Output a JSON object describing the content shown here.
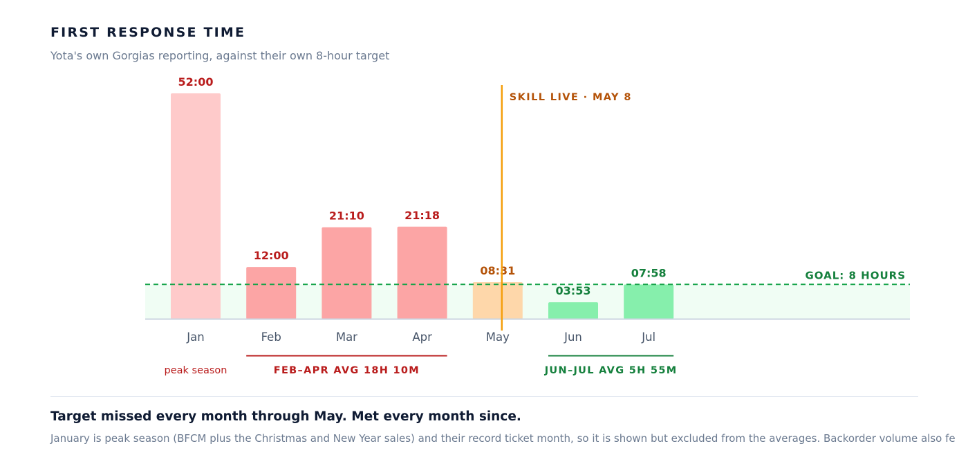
{
  "header": {
    "title": "FIRST RESPONSE TIME",
    "subtitle": "Yota's own Gorgias reporting, against their own 8-hour target"
  },
  "chart_data": {
    "type": "bar",
    "title": "FIRST RESPONSE TIME",
    "subtitle": "Yota's own Gorgias reporting, against their own 8-hour target",
    "categories": [
      "Jan",
      "Feb",
      "Mar",
      "Apr",
      "May",
      "Jun",
      "Jul"
    ],
    "values": [
      52.0,
      12.0,
      21.1667,
      21.3,
      8.5167,
      3.8833,
      7.9667
    ],
    "value_unit": "hours",
    "data_labels": [
      "52:00",
      "12:00",
      "21:10",
      "21:18",
      "08:31",
      "03:53",
      "07:58"
    ],
    "bar_colors": [
      "#fecaca",
      "#fca5a5",
      "#fca5a5",
      "#fca5a5",
      "#fed7aa",
      "#86efac",
      "#86efac"
    ],
    "label_colors": [
      "#b91c1c",
      "#b91c1c",
      "#b91c1c",
      "#b91c1c",
      "#b45309",
      "#15803d",
      "#15803d"
    ],
    "ylim": [
      0,
      52
    ],
    "grid": false,
    "goal_line": {
      "value": 8,
      "label": "GOAL: 8 HOURS",
      "color": "#16a34a"
    },
    "event_marker": {
      "category": "May",
      "label": "SKILL LIVE · MAY 8",
      "color": "#f59e0b"
    },
    "annotations": [
      {
        "text": "peak season",
        "categories": [
          "Jan"
        ],
        "color": "#b91c1c",
        "underline": false
      },
      {
        "text": "FEB–APR AVG 18H 10M",
        "categories": [
          "Feb",
          "Apr"
        ],
        "color": "#b91c1c",
        "underline": true
      },
      {
        "text": "JUN–JUL AVG 5H 55M",
        "categories": [
          "Jun",
          "Jul"
        ],
        "color": "#15803d",
        "underline": true
      }
    ]
  },
  "footer": {
    "heading": "Target missed every month through May. Met every month since.",
    "body": "January is peak season (BFCM plus the Christmas and New Year sales) and their record ticket month, so it is shown but excluded from the averages. Backorder volume also fe"
  },
  "colors": {
    "axis": "#cbd5e1",
    "goal_band": "#f0fdf4",
    "tick_text": "#475569"
  }
}
